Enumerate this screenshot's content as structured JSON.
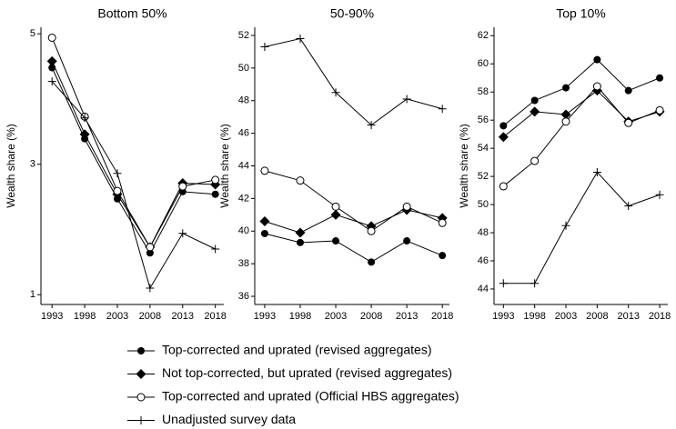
{
  "chart_data": [
    {
      "type": "line",
      "title": "Bottom 50%",
      "y_label": "Wealth share (%)",
      "x": [
        1993,
        1998,
        2003,
        2008,
        2013,
        2018
      ],
      "xlim": [
        1991.3,
        2019.3
      ],
      "xticks": [
        1993,
        1998,
        2003,
        2008,
        2013,
        2018
      ],
      "ylim": [
        0.85,
        5.1
      ],
      "yticks": [
        1,
        3,
        5
      ],
      "series": [
        {
          "name": "Top-corrected and uprated (revised aggregates)",
          "color": "#000000",
          "marker": "circle-filled",
          "values": [
            4.48,
            3.39,
            2.47,
            1.64,
            2.58,
            2.54
          ]
        },
        {
          "name": "Not top-corrected, but uprated (revised aggregates)",
          "color": "#000000",
          "marker": "diamond",
          "values": [
            4.58,
            3.46,
            2.54,
            1.73,
            2.71,
            2.69
          ]
        },
        {
          "name": "Top-corrected and uprated (Official HBS aggregates)",
          "color": "#000000",
          "marker": "circle-open",
          "values": [
            4.94,
            3.73,
            2.59,
            1.73,
            2.66,
            2.76
          ]
        },
        {
          "name": "Unadjusted survey data",
          "color": "#000000",
          "marker": "plus",
          "values": [
            4.27,
            3.71,
            2.86,
            1.1,
            1.94,
            1.7
          ]
        }
      ]
    },
    {
      "type": "line",
      "title": "50-90%",
      "y_label": "Wealth share (%)",
      "x": [
        1993,
        1998,
        2003,
        2008,
        2013,
        2018
      ],
      "xlim": [
        1991.6,
        2019.0
      ],
      "xticks": [
        1993,
        1998,
        2003,
        2008,
        2013,
        2018
      ],
      "ylim": [
        35.5,
        52.5
      ],
      "yticks": [
        36,
        38,
        40,
        42,
        44,
        46,
        48,
        50,
        52
      ],
      "series": [
        {
          "name": "Top-corrected and uprated (revised aggregates)",
          "color": "#000000",
          "marker": "circle-filled",
          "values": [
            39.85,
            39.3,
            39.4,
            38.1,
            39.4,
            38.5
          ]
        },
        {
          "name": "Not top-corrected, but uprated (revised aggregates)",
          "color": "#000000",
          "marker": "diamond",
          "values": [
            40.6,
            39.9,
            41.0,
            40.3,
            41.3,
            40.8
          ]
        },
        {
          "name": "Top-corrected and uprated (Official HBS aggregates)",
          "color": "#000000",
          "marker": "circle-open",
          "values": [
            43.7,
            43.1,
            41.5,
            40.0,
            41.5,
            40.5
          ]
        },
        {
          "name": "Unadjusted survey data",
          "color": "#000000",
          "marker": "plus",
          "values": [
            51.3,
            51.8,
            48.5,
            46.5,
            48.1,
            47.5
          ]
        }
      ]
    },
    {
      "type": "line",
      "title": "Top 10%",
      "y_label": "Wealth share (%)",
      "x": [
        1993,
        1998,
        2003,
        2008,
        2013,
        2018
      ],
      "xlim": [
        1991.5,
        2019.3
      ],
      "xticks": [
        1993,
        1998,
        2003,
        2008,
        2013,
        2018
      ],
      "ylim": [
        42.9,
        62.6
      ],
      "yticks": [
        44,
        46,
        48,
        50,
        52,
        54,
        56,
        58,
        60,
        62
      ],
      "series": [
        {
          "name": "Top-corrected and uprated (revised aggregates)",
          "color": "#000000",
          "marker": "circle-filled",
          "values": [
            55.6,
            57.4,
            58.3,
            60.3,
            58.1,
            59.0
          ]
        },
        {
          "name": "Not top-corrected, but uprated (revised aggregates)",
          "color": "#000000",
          "marker": "diamond",
          "values": [
            54.8,
            56.6,
            56.4,
            58.1,
            55.9,
            56.6
          ]
        },
        {
          "name": "Top-corrected and uprated (Official HBS aggregates)",
          "color": "#000000",
          "marker": "circle-open",
          "values": [
            51.3,
            53.1,
            55.9,
            58.4,
            55.8,
            56.7
          ]
        },
        {
          "name": "Unadjusted survey data",
          "color": "#000000",
          "marker": "plus",
          "values": [
            44.4,
            44.4,
            48.5,
            52.3,
            49.9,
            50.7
          ]
        }
      ]
    }
  ]
}
